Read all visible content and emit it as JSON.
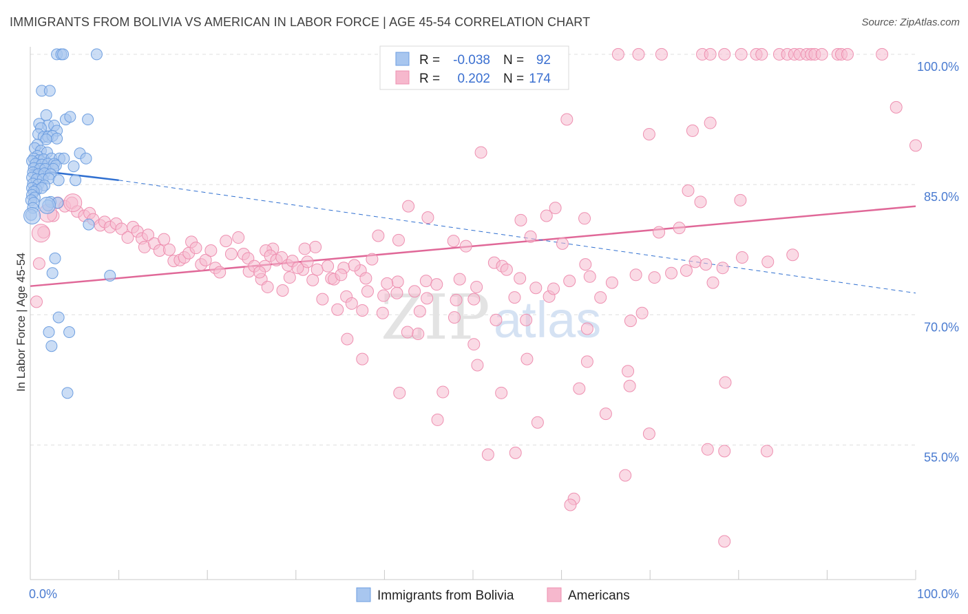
{
  "title": "IMMIGRANTS FROM BOLIVIA VS AMERICAN IN LABOR FORCE | AGE 45-54 CORRELATION CHART",
  "source": "Source: ZipAtlas.com",
  "watermark": {
    "zip": "ZIP",
    "atlas": "atlas"
  },
  "legend": {
    "r_label": "R =",
    "n_label": "N =",
    "rows": [
      {
        "r": "-0.038",
        "n": "92",
        "color": "#a8c6ef"
      },
      {
        "r": "0.202",
        "n": "174",
        "color": "#f6b8cd"
      }
    ]
  },
  "bottom_legend": [
    "Immigrants from Bolivia",
    "Americans"
  ],
  "colors": {
    "blue_fill": "#a8c6ef",
    "blue_stroke": "#6d9ee0",
    "blue_line": "#2f6fd0",
    "pink_fill": "#f6bcd0",
    "pink_stroke": "#ee8fb0",
    "pink_line": "#e06898",
    "axis_label": "#4a7bd0"
  },
  "chart_data": {
    "type": "scatter",
    "title": "IMMIGRANTS FROM BOLIVIA VS AMERICAN IN LABOR FORCE | AGE 45-54 CORRELATION CHART",
    "xlabel": "",
    "ylabel": "In Labor Force | Age 45-54",
    "xlim": [
      0,
      100
    ],
    "ylim": [
      39.5,
      101.5
    ],
    "x_tick_labels": [
      "0.0%",
      "100.0%"
    ],
    "y_ticks": [
      55,
      70,
      85,
      100
    ],
    "y_tick_labels": [
      "55.0%",
      "70.0%",
      "85.0%",
      "100.0%"
    ],
    "grid": true,
    "legend_position": "top-center",
    "series": [
      {
        "name": "Immigrants from Bolivia",
        "R": -0.038,
        "N": 92,
        "trend": {
          "x0": 0,
          "y0": 86.7,
          "x1": 10,
          "y1": 85.5,
          "dashed_to_x": 100,
          "dashed_to_y": 72.5
        },
        "points": [
          [
            3.0,
            100.0
          ],
          [
            3.5,
            100.0
          ],
          [
            3.7,
            100.0
          ],
          [
            7.5,
            100.0
          ],
          [
            1.3,
            95.8
          ],
          [
            2.2,
            95.8
          ],
          [
            1.8,
            93.0
          ],
          [
            6.5,
            92.5
          ],
          [
            4.0,
            92.5
          ],
          [
            4.5,
            92.8
          ],
          [
            1.0,
            92.0
          ],
          [
            2.0,
            91.8
          ],
          [
            2.7,
            91.8
          ],
          [
            1.2,
            91.5
          ],
          [
            0.9,
            90.8
          ],
          [
            1.5,
            90.5
          ],
          [
            2.0,
            90.5
          ],
          [
            3.0,
            91.2
          ],
          [
            2.5,
            90.6
          ],
          [
            3.0,
            90.3
          ],
          [
            1.8,
            90.2
          ],
          [
            0.8,
            89.6
          ],
          [
            0.5,
            89.2
          ],
          [
            1.2,
            88.9
          ],
          [
            1.9,
            88.7
          ],
          [
            5.6,
            88.6
          ],
          [
            0.8,
            88.3
          ],
          [
            0.4,
            88.0
          ],
          [
            1.0,
            87.8
          ],
          [
            1.5,
            87.9
          ],
          [
            2.4,
            88.0
          ],
          [
            3.3,
            88.0
          ],
          [
            3.8,
            88.0
          ],
          [
            6.3,
            88.0
          ],
          [
            0.2,
            87.7
          ],
          [
            0.6,
            87.4
          ],
          [
            1.3,
            87.3
          ],
          [
            2.0,
            87.4
          ],
          [
            2.7,
            87.4
          ],
          [
            2.9,
            87.2
          ],
          [
            4.9,
            87.1
          ],
          [
            0.4,
            86.9
          ],
          [
            1.1,
            86.8
          ],
          [
            1.7,
            86.8
          ],
          [
            2.6,
            86.8
          ],
          [
            0.3,
            86.4
          ],
          [
            0.9,
            86.2
          ],
          [
            1.6,
            86.3
          ],
          [
            2.3,
            86.2
          ],
          [
            0.2,
            85.8
          ],
          [
            0.7,
            85.6
          ],
          [
            1.4,
            85.6
          ],
          [
            2.1,
            85.7
          ],
          [
            3.2,
            85.5
          ],
          [
            5.1,
            85.5
          ],
          [
            0.3,
            85.1
          ],
          [
            0.9,
            85.0
          ],
          [
            1.6,
            84.9
          ],
          [
            0.2,
            84.6
          ],
          [
            0.7,
            84.4
          ],
          [
            1.3,
            84.6
          ],
          [
            0.4,
            84.2
          ],
          [
            0.2,
            83.8
          ],
          [
            0.5,
            83.5
          ],
          [
            0.1,
            83.2
          ],
          [
            0.4,
            82.9
          ],
          [
            2.3,
            83.0
          ],
          [
            3.1,
            82.9
          ],
          [
            2.0,
            82.6
          ],
          [
            0.3,
            82.3
          ],
          [
            0.1,
            81.5
          ],
          [
            6.6,
            80.4
          ],
          [
            2.8,
            76.5
          ],
          [
            9.0,
            74.5
          ],
          [
            2.5,
            74.8
          ],
          [
            3.2,
            69.7
          ],
          [
            2.1,
            68.0
          ],
          [
            4.4,
            68.0
          ],
          [
            2.4,
            66.4
          ],
          [
            4.2,
            61.0
          ]
        ],
        "large_points": [
          [
            0.2,
            81.4
          ],
          [
            1.9,
            82.6
          ]
        ]
      },
      {
        "name": "Americans",
        "R": 0.202,
        "N": 174,
        "trend": {
          "x0": 0,
          "y0": 73.3,
          "x1": 100,
          "y1": 82.5
        },
        "points": [
          [
            66.4,
            100.0
          ],
          [
            68.7,
            100.0
          ],
          [
            71.3,
            100.0
          ],
          [
            75.9,
            100.0
          ],
          [
            76.8,
            100.0
          ],
          [
            78.4,
            100.0
          ],
          [
            80.3,
            100.0
          ],
          [
            82.0,
            100.0
          ],
          [
            82.6,
            100.0
          ],
          [
            84.6,
            100.0
          ],
          [
            85.5,
            100.0
          ],
          [
            86.3,
            100.0
          ],
          [
            86.9,
            100.0
          ],
          [
            87.7,
            100.0
          ],
          [
            88.2,
            100.0
          ],
          [
            88.6,
            100.0
          ],
          [
            89.4,
            100.0
          ],
          [
            91.2,
            100.0
          ],
          [
            91.6,
            100.0
          ],
          [
            92.3,
            100.0
          ],
          [
            96.2,
            100.0
          ],
          [
            97.8,
            93.9
          ],
          [
            100.0,
            89.5
          ],
          [
            60.6,
            92.5
          ],
          [
            69.9,
            90.8
          ],
          [
            74.8,
            91.2
          ],
          [
            76.8,
            92.1
          ],
          [
            50.9,
            88.7
          ],
          [
            74.3,
            84.3
          ],
          [
            75.7,
            83.0
          ],
          [
            80.2,
            83.2
          ],
          [
            42.7,
            82.5
          ],
          [
            44.9,
            81.2
          ],
          [
            55.4,
            80.9
          ],
          [
            58.3,
            81.4
          ],
          [
            59.3,
            82.3
          ],
          [
            62.6,
            81.1
          ],
          [
            73.3,
            80.0
          ],
          [
            71.0,
            79.5
          ],
          [
            39.3,
            79.1
          ],
          [
            41.6,
            78.6
          ],
          [
            47.8,
            78.5
          ],
          [
            56.5,
            79.0
          ],
          [
            60.1,
            78.2
          ],
          [
            32.2,
            77.8
          ],
          [
            27.4,
            77.6
          ],
          [
            31.0,
            77.6
          ],
          [
            38.6,
            76.4
          ],
          [
            49.2,
            77.9
          ],
          [
            52.4,
            76.0
          ],
          [
            53.3,
            75.6
          ],
          [
            62.7,
            75.8
          ],
          [
            75.1,
            76.1
          ],
          [
            77.1,
            73.7
          ],
          [
            35.4,
            75.4
          ],
          [
            37.3,
            75.1
          ],
          [
            30.8,
            75.2
          ],
          [
            24.7,
            75.0
          ],
          [
            26.5,
            75.6
          ],
          [
            26.1,
            74.1
          ],
          [
            29.3,
            74.3
          ],
          [
            31.9,
            74.0
          ],
          [
            34.0,
            74.2
          ],
          [
            41.5,
            73.8
          ],
          [
            43.4,
            72.7
          ],
          [
            44.7,
            73.9
          ],
          [
            26.8,
            73.2
          ],
          [
            28.5,
            72.8
          ],
          [
            35.7,
            72.1
          ],
          [
            38.1,
            72.7
          ],
          [
            33.0,
            71.8
          ],
          [
            37.5,
            70.5
          ],
          [
            36.3,
            71.3
          ],
          [
            39.9,
            72.2
          ],
          [
            41.4,
            72.5
          ],
          [
            44.8,
            71.9
          ],
          [
            48.1,
            71.7
          ],
          [
            50.1,
            71.8
          ],
          [
            54.7,
            72.0
          ],
          [
            58.6,
            72.1
          ],
          [
            64.4,
            72.0
          ],
          [
            69.1,
            70.2
          ],
          [
            34.7,
            70.6
          ],
          [
            39.8,
            70.2
          ],
          [
            44.0,
            70.4
          ],
          [
            47.9,
            69.7
          ],
          [
            52.6,
            69.4
          ],
          [
            56.0,
            69.4
          ],
          [
            67.8,
            69.3
          ],
          [
            62.9,
            68.4
          ],
          [
            42.6,
            68.0
          ],
          [
            43.8,
            67.8
          ],
          [
            35.8,
            67.2
          ],
          [
            50.1,
            66.6
          ],
          [
            62.9,
            64.6
          ],
          [
            50.5,
            64.2
          ],
          [
            37.5,
            64.9
          ],
          [
            56.1,
            64.9
          ],
          [
            67.5,
            63.5
          ],
          [
            78.5,
            62.2
          ],
          [
            67.7,
            61.8
          ],
          [
            62.0,
            61.5
          ],
          [
            46.6,
            61.1
          ],
          [
            53.2,
            61.0
          ],
          [
            41.7,
            61.0
          ],
          [
            65.0,
            58.6
          ],
          [
            46.0,
            57.9
          ],
          [
            57.3,
            57.6
          ],
          [
            69.9,
            56.3
          ],
          [
            54.8,
            54.1
          ],
          [
            76.5,
            54.5
          ],
          [
            78.4,
            54.3
          ],
          [
            83.2,
            54.3
          ],
          [
            51.7,
            53.9
          ],
          [
            67.2,
            51.5
          ],
          [
            61.4,
            48.8
          ],
          [
            61.0,
            48.1
          ],
          [
            78.4,
            43.9
          ],
          [
            0.7,
            71.5
          ],
          [
            1.0,
            75.9
          ],
          [
            1.5,
            79.5
          ],
          [
            2.6,
            81.4
          ],
          [
            3.1,
            82.9
          ],
          [
            3.9,
            82.5
          ],
          [
            4.7,
            82.9
          ],
          [
            5.3,
            81.9
          ],
          [
            6.1,
            81.4
          ],
          [
            6.7,
            81.7
          ],
          [
            7.1,
            81.0
          ],
          [
            7.9,
            80.3
          ],
          [
            8.4,
            80.7
          ],
          [
            9.0,
            80.1
          ],
          [
            9.7,
            80.5
          ],
          [
            10.3,
            79.9
          ],
          [
            11.0,
            78.9
          ],
          [
            11.6,
            80.1
          ],
          [
            12.1,
            79.6
          ],
          [
            12.6,
            78.8
          ],
          [
            12.9,
            77.8
          ],
          [
            13.3,
            79.2
          ],
          [
            14.0,
            78.2
          ],
          [
            14.6,
            77.4
          ],
          [
            15.1,
            78.7
          ],
          [
            15.7,
            77.5
          ],
          [
            16.2,
            76.2
          ],
          [
            16.9,
            76.3
          ],
          [
            17.4,
            76.6
          ],
          [
            17.9,
            77.1
          ],
          [
            18.2,
            78.4
          ],
          [
            18.7,
            77.7
          ],
          [
            19.3,
            75.8
          ],
          [
            19.8,
            76.3
          ],
          [
            20.4,
            77.4
          ],
          [
            20.9,
            75.4
          ],
          [
            21.4,
            74.9
          ],
          [
            22.1,
            78.5
          ],
          [
            22.7,
            77.0
          ],
          [
            23.5,
            78.9
          ],
          [
            24.1,
            77.0
          ],
          [
            24.6,
            76.5
          ],
          [
            25.3,
            75.6
          ],
          [
            25.9,
            74.9
          ],
          [
            26.6,
            77.4
          ],
          [
            27.1,
            76.8
          ],
          [
            27.8,
            76.3
          ],
          [
            28.4,
            76.6
          ],
          [
            29.1,
            75.7
          ],
          [
            29.6,
            76.2
          ],
          [
            30.2,
            75.4
          ],
          [
            31.3,
            76.1
          ],
          [
            32.4,
            75.2
          ],
          [
            33.6,
            75.6
          ],
          [
            34.3,
            74.1
          ],
          [
            35.1,
            74.6
          ],
          [
            36.6,
            75.7
          ],
          [
            37.9,
            74.2
          ],
          [
            40.3,
            73.6
          ],
          [
            45.9,
            73.5
          ],
          [
            48.5,
            74.1
          ],
          [
            50.4,
            73.2
          ],
          [
            53.8,
            75.2
          ],
          [
            55.3,
            74.2
          ],
          [
            57.1,
            73.1
          ],
          [
            59.1,
            73.0
          ],
          [
            60.9,
            73.9
          ],
          [
            63.2,
            74.4
          ],
          [
            65.7,
            73.7
          ],
          [
            68.4,
            74.6
          ],
          [
            70.5,
            74.3
          ],
          [
            72.4,
            74.8
          ],
          [
            74.1,
            75.1
          ],
          [
            76.3,
            75.8
          ],
          [
            78.2,
            75.4
          ],
          [
            80.4,
            76.6
          ],
          [
            83.3,
            76.1
          ],
          [
            86.1,
            76.9
          ]
        ],
        "large_points": [
          [
            4.8,
            82.9
          ],
          [
            2.0,
            81.7
          ],
          [
            1.2,
            79.4
          ]
        ]
      }
    ]
  }
}
